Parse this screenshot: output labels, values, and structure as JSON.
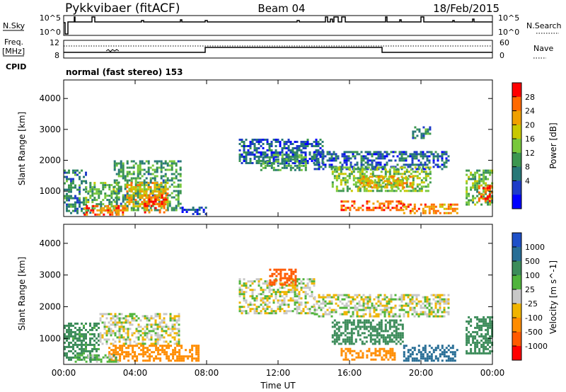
{
  "header": {
    "radar": "Pykkvibaer (fitACF)",
    "beam": "Beam 04",
    "date": "18/Feb/2015"
  },
  "nsky": {
    "label": "N.Sky",
    "tick_top": "10^5",
    "tick_bottom": "10^0",
    "right_label": "N.Search",
    "right_tick_top": "10^5",
    "right_tick_bottom": "10^0"
  },
  "freq": {
    "label_line1": "Freq.",
    "label_line2": "[MHz]",
    "tick_top": "12",
    "tick_bottom": "8",
    "right_label": "Nave",
    "right_tick_top": "60",
    "right_tick_bottom": "0"
  },
  "cpid": {
    "label": "CPID",
    "text": "normal (fast stereo) 153"
  },
  "power_colorbar": {
    "label": "Power [dB]",
    "ticks": [
      "28",
      "24",
      "20",
      "16",
      "12",
      "8",
      "4"
    ],
    "colors": [
      "#ff0000",
      "#ff6a00",
      "#f0a000",
      "#c8c800",
      "#78c83c",
      "#3c9650",
      "#287878",
      "#1e3cc8",
      "#0000ff"
    ]
  },
  "velocity_colorbar": {
    "label": "Velocity [m s^-1]",
    "ticks": [
      "1000",
      "500",
      "100",
      "25",
      "-25",
      "-100",
      "-500",
      "-1000"
    ],
    "colors": [
      "#1e50c8",
      "#286e96",
      "#3c8c5a",
      "#50b43c",
      "#c8c8c8",
      "#f0b400",
      "#ff8c00",
      "#ff5a00",
      "#ff0000"
    ]
  },
  "axes": {
    "ylabel": "Slant Range [km]",
    "xlabel": "Time UT",
    "y_ticks": [
      "4000",
      "3000",
      "2000",
      "1000"
    ],
    "x_ticks": [
      "00:00",
      "04:00",
      "08:00",
      "12:00",
      "16:00",
      "20:00",
      "00:00"
    ]
  },
  "chart_data": [
    {
      "type": "heatmap",
      "title": "Power",
      "xlabel": "",
      "ylabel": "Slant Range [km]",
      "xlim": [
        0,
        24
      ],
      "ylim": [
        180,
        4600
      ],
      "zlabel": "Power [dB]",
      "zlim": [
        0,
        32
      ],
      "regions": [
        {
          "t0": 0.0,
          "t1": 1.2,
          "r0": 300,
          "r1": 1700,
          "p": 10
        },
        {
          "t0": 1.2,
          "t1": 3.0,
          "r0": 300,
          "r1": 1300,
          "p": 14
        },
        {
          "t0": 2.8,
          "t1": 6.6,
          "r0": 400,
          "r1": 2000,
          "p": 12
        },
        {
          "t0": 3.5,
          "t1": 5.8,
          "r0": 500,
          "r1": 1300,
          "p": 22
        },
        {
          "t0": 4.5,
          "t1": 5.8,
          "r0": 350,
          "r1": 900,
          "p": 27
        },
        {
          "t0": 1.0,
          "t1": 3.5,
          "r0": 250,
          "r1": 550,
          "p": 26
        },
        {
          "t0": 6.6,
          "t1": 8.0,
          "r0": 250,
          "r1": 500,
          "p": 6
        },
        {
          "t0": 9.8,
          "t1": 14.5,
          "r0": 1900,
          "r1": 2700,
          "p": 7
        },
        {
          "t0": 11.0,
          "t1": 13.5,
          "r0": 1700,
          "r1": 2200,
          "p": 12
        },
        {
          "t0": 14.0,
          "t1": 21.5,
          "r0": 1700,
          "r1": 2300,
          "p": 7
        },
        {
          "t0": 15.0,
          "t1": 20.5,
          "r0": 1000,
          "r1": 1800,
          "p": 16
        },
        {
          "t0": 16.5,
          "t1": 19.5,
          "r0": 1100,
          "r1": 1500,
          "p": 22
        },
        {
          "t0": 15.5,
          "t1": 19.0,
          "r0": 400,
          "r1": 700,
          "p": 27
        },
        {
          "t0": 19.0,
          "t1": 22.0,
          "r0": 300,
          "r1": 600,
          "p": 25
        },
        {
          "t0": 22.5,
          "t1": 24.0,
          "r0": 600,
          "r1": 1700,
          "p": 15
        },
        {
          "t0": 23.2,
          "t1": 24.0,
          "r0": 700,
          "r1": 1200,
          "p": 27
        },
        {
          "t0": 19.5,
          "t1": 20.5,
          "r0": 2700,
          "r1": 3100,
          "p": 10
        }
      ]
    },
    {
      "type": "heatmap",
      "title": "Velocity",
      "xlabel": "Time UT",
      "ylabel": "Slant Range [km]",
      "xlim": [
        0,
        24
      ],
      "ylim": [
        180,
        4600
      ],
      "zlabel": "Velocity [m s^-1]",
      "regions": [
        {
          "t0": 0.0,
          "t1": 2.0,
          "r0": 300,
          "r1": 1500,
          "v": 150
        },
        {
          "t0": 2.0,
          "t1": 6.5,
          "r0": 800,
          "r1": 1800,
          "v": 0
        },
        {
          "t0": 2.5,
          "t1": 7.5,
          "r0": 300,
          "r1": 800,
          "v": -200
        },
        {
          "t0": 0.5,
          "t1": 3.0,
          "r0": 250,
          "r1": 500,
          "v": 50
        },
        {
          "t0": 9.8,
          "t1": 14.0,
          "r0": 1800,
          "r1": 2900,
          "v": 0
        },
        {
          "t0": 14.0,
          "t1": 21.5,
          "r0": 1700,
          "r1": 2400,
          "v": 0
        },
        {
          "t0": 11.5,
          "t1": 13.0,
          "r0": 2700,
          "r1": 3200,
          "v": -600
        },
        {
          "t0": 15.0,
          "t1": 19.0,
          "r0": 800,
          "r1": 1600,
          "v": 300
        },
        {
          "t0": 15.5,
          "t1": 18.5,
          "r0": 300,
          "r1": 700,
          "v": -200
        },
        {
          "t0": 19.0,
          "t1": 22.0,
          "r0": 300,
          "r1": 800,
          "v": 600
        },
        {
          "t0": 22.5,
          "t1": 24.0,
          "r0": 500,
          "r1": 1700,
          "v": 400
        }
      ]
    }
  ]
}
